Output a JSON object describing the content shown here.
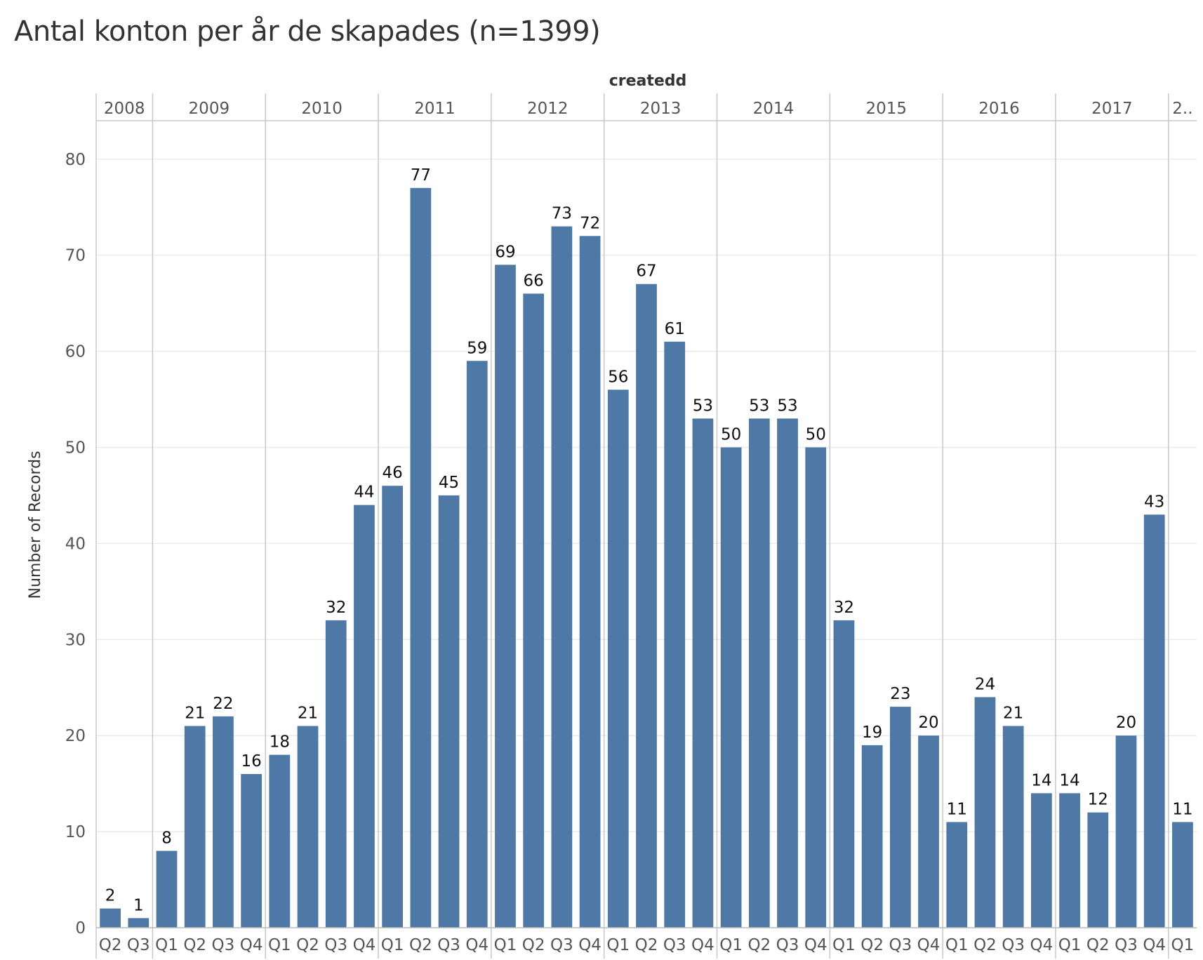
{
  "chart_data": {
    "type": "bar",
    "title": "Antal konton per år de skapades (n=1399)",
    "column_header_title": "createdd",
    "ylabel": "Number of Records",
    "ylim": [
      0,
      84
    ],
    "yticks": [
      0,
      10,
      20,
      30,
      40,
      50,
      60,
      70,
      80
    ],
    "grid": true,
    "bar_color": "#4e79a7",
    "groups": [
      {
        "year": "2008",
        "quarters": [
          "Q2",
          "Q3"
        ],
        "values": [
          2,
          1
        ]
      },
      {
        "year": "2009",
        "quarters": [
          "Q1",
          "Q2",
          "Q3",
          "Q4"
        ],
        "values": [
          8,
          21,
          22,
          16
        ]
      },
      {
        "year": "2010",
        "quarters": [
          "Q1",
          "Q2",
          "Q3",
          "Q4"
        ],
        "values": [
          18,
          21,
          32,
          44
        ]
      },
      {
        "year": "2011",
        "quarters": [
          "Q1",
          "Q2",
          "Q3",
          "Q4"
        ],
        "values": [
          46,
          77,
          45,
          59
        ]
      },
      {
        "year": "2012",
        "quarters": [
          "Q1",
          "Q2",
          "Q3",
          "Q4"
        ],
        "values": [
          69,
          66,
          73,
          72
        ]
      },
      {
        "year": "2013",
        "quarters": [
          "Q1",
          "Q2",
          "Q3",
          "Q4"
        ],
        "values": [
          56,
          67,
          61,
          53
        ]
      },
      {
        "year": "2014",
        "quarters": [
          "Q1",
          "Q2",
          "Q3",
          "Q4"
        ],
        "values": [
          50,
          53,
          53,
          50
        ]
      },
      {
        "year": "2015",
        "quarters": [
          "Q1",
          "Q2",
          "Q3",
          "Q4"
        ],
        "values": [
          32,
          19,
          23,
          20
        ]
      },
      {
        "year": "2016",
        "quarters": [
          "Q1",
          "Q2",
          "Q3",
          "Q4"
        ],
        "values": [
          11,
          24,
          21,
          14
        ]
      },
      {
        "year": "2017",
        "quarters": [
          "Q1",
          "Q2",
          "Q3",
          "Q4"
        ],
        "values": [
          14,
          12,
          20,
          43
        ]
      },
      {
        "year": "2..",
        "quarters": [
          "Q1"
        ],
        "values": [
          11
        ]
      }
    ]
  }
}
